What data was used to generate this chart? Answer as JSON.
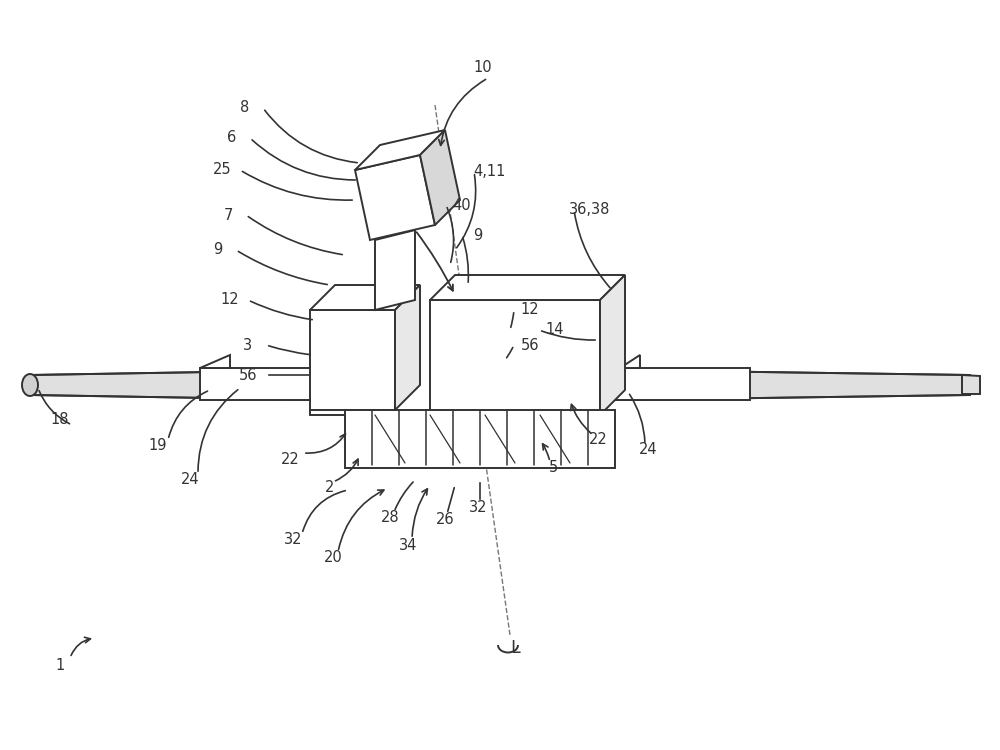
{
  "bg_color": "#ffffff",
  "lc": "#333333",
  "lw": 1.4,
  "fs": 10.5,
  "fig_w": 10.0,
  "fig_h": 7.5,
  "dpi": 100
}
